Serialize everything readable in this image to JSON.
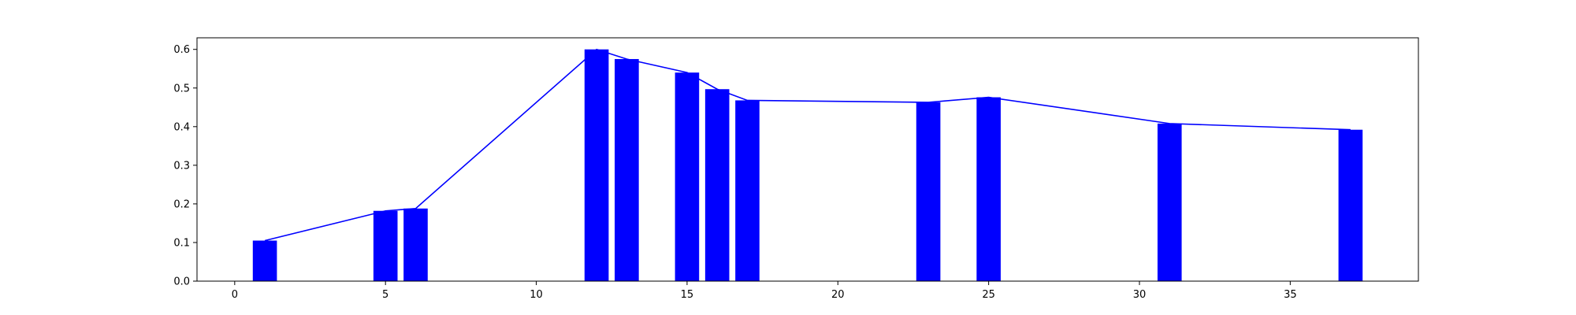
{
  "chart_data": {
    "type": "bar",
    "title": "",
    "xlabel": "",
    "ylabel": "",
    "xlim": [
      -1.25,
      39.25
    ],
    "ylim": [
      0,
      0.63
    ],
    "grid": false,
    "bar_color": "#0000ff",
    "line_color": "#0000ff",
    "bar_width": 0.8,
    "x": [
      1,
      5,
      6,
      12,
      13,
      15,
      16,
      17,
      23,
      25,
      31,
      37
    ],
    "values": [
      0.105,
      0.182,
      0.188,
      0.6,
      0.575,
      0.54,
      0.497,
      0.468,
      0.463,
      0.476,
      0.408,
      0.392
    ],
    "line": {
      "x": [
        1,
        5,
        6,
        12,
        13,
        15,
        16,
        17,
        23,
        25,
        31,
        37
      ],
      "y": [
        0.105,
        0.182,
        0.188,
        0.6,
        0.575,
        0.54,
        0.497,
        0.468,
        0.463,
        0.476,
        0.408,
        0.392
      ]
    },
    "xticks": [
      0,
      5,
      10,
      15,
      20,
      25,
      30,
      35
    ],
    "xtick_labels": [
      "0",
      "5",
      "10",
      "15",
      "20",
      "25",
      "30",
      "35"
    ],
    "yticks": [
      0.0,
      0.1,
      0.2,
      0.3,
      0.4,
      0.5,
      0.6
    ],
    "ytick_labels": [
      "0.0",
      "0.1",
      "0.2",
      "0.3",
      "0.4",
      "0.5",
      "0.6"
    ]
  }
}
